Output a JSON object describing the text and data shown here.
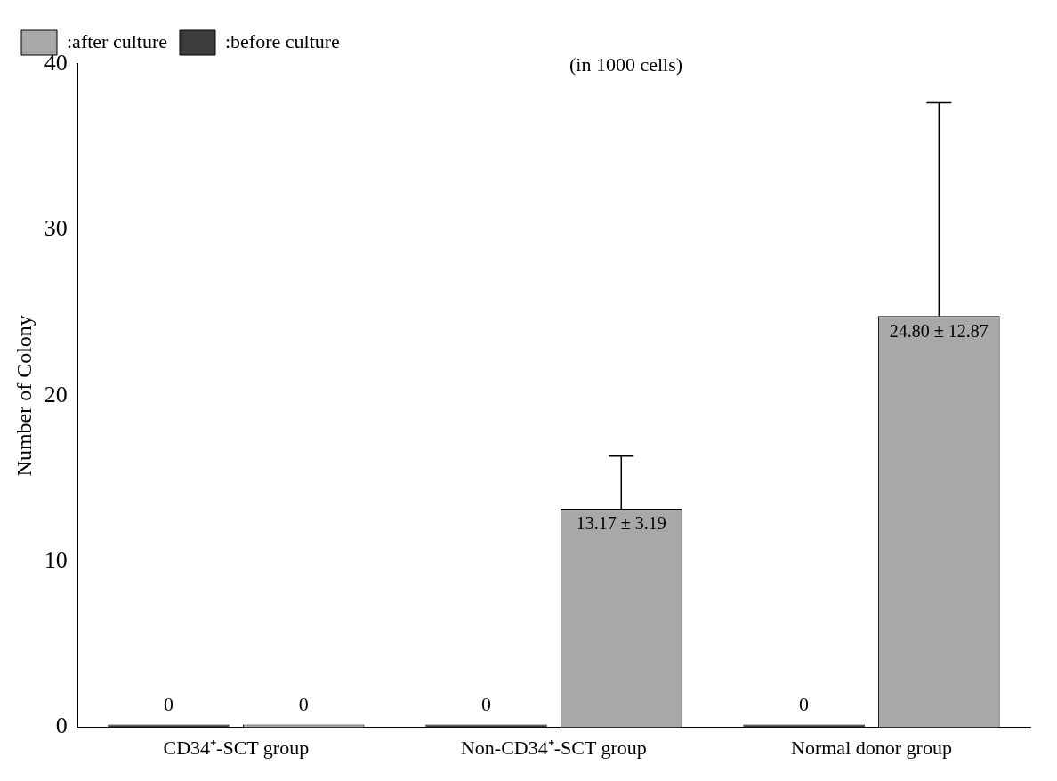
{
  "chart_data": {
    "type": "bar",
    "ylabel": "Number of Colony",
    "annotations": [
      "(in 1000 cells)"
    ],
    "categories": [
      "CD34⁺-SCT group",
      "Non-CD34⁺-SCT group",
      "Normal donor group"
    ],
    "series": [
      {
        "name": ":before culture",
        "color": "#3c3c3c",
        "values": [
          0,
          0,
          0
        ],
        "value_labels": [
          "0",
          "0",
          "0"
        ]
      },
      {
        "name": ":after culture",
        "color": "#a8a8a8",
        "values": [
          0,
          13.17,
          24.8
        ],
        "errors": [
          null,
          3.19,
          12.87
        ],
        "value_labels": [
          "0",
          "13.17 ± 3.19",
          "24.80 ± 12.87"
        ]
      }
    ],
    "ylim": [
      0,
      40
    ],
    "yticks": [
      0,
      10,
      20,
      30,
      40
    ],
    "grid": false,
    "legend": "top left"
  }
}
